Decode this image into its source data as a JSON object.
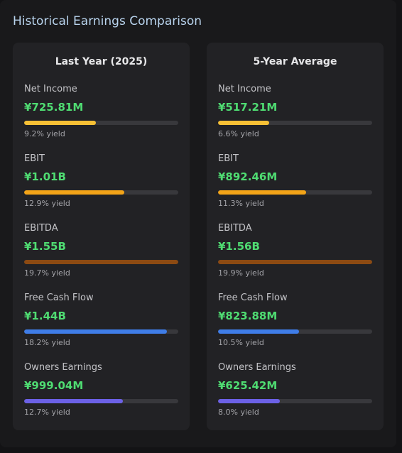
{
  "heading": "Historical Earnings Comparison",
  "colors": {
    "value_text": "#4fdc72",
    "net_income_bar": "#f7c035",
    "ebit_bar": "#f3a418",
    "ebitda_bar": "#8c4a12",
    "fcf_bar": "#3f7de8",
    "owners_bar": "#6c61e6",
    "track": "#38383c"
  },
  "cards": [
    {
      "title": "Last Year (2025)",
      "metrics": [
        {
          "label": "Net Income",
          "value": "¥725.81M",
          "yield": "9.2% yield",
          "fill_fraction": 0.465
        },
        {
          "label": "EBIT",
          "value": "¥1.01B",
          "yield": "12.9% yield",
          "fill_fraction": 0.65
        },
        {
          "label": "EBITDA",
          "value": "¥1.55B",
          "yield": "19.7% yield",
          "fill_fraction": 1.0
        },
        {
          "label": "Free Cash Flow",
          "value": "¥1.44B",
          "yield": "18.2% yield",
          "fill_fraction": 0.925
        },
        {
          "label": "Owners Earnings",
          "value": "¥999.04M",
          "yield": "12.7% yield",
          "fill_fraction": 0.64
        }
      ]
    },
    {
      "title": "5-Year Average",
      "metrics": [
        {
          "label": "Net Income",
          "value": "¥517.21M",
          "yield": "6.6% yield",
          "fill_fraction": 0.33
        },
        {
          "label": "EBIT",
          "value": "¥892.46M",
          "yield": "11.3% yield",
          "fill_fraction": 0.57
        },
        {
          "label": "EBITDA",
          "value": "¥1.56B",
          "yield": "19.9% yield",
          "fill_fraction": 1.0
        },
        {
          "label": "Free Cash Flow",
          "value": "¥823.88M",
          "yield": "10.5% yield",
          "fill_fraction": 0.525
        },
        {
          "label": "Owners Earnings",
          "value": "¥625.42M",
          "yield": "8.0% yield",
          "fill_fraction": 0.4
        }
      ]
    }
  ]
}
